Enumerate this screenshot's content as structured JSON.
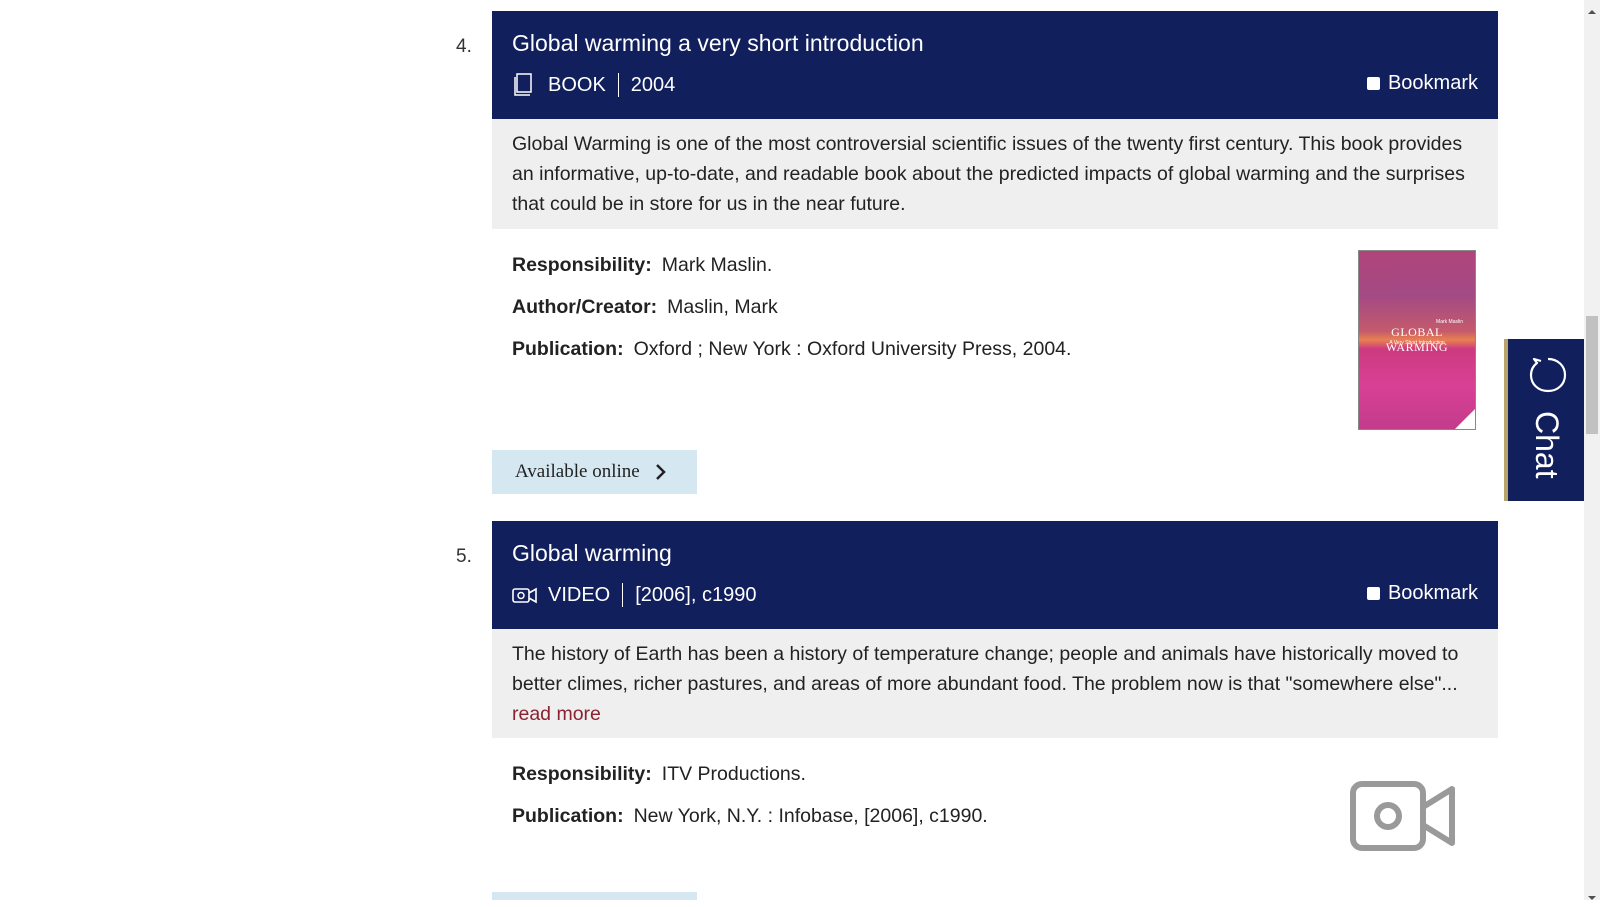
{
  "results": [
    {
      "number": "4.",
      "title": "Global warming a very short introduction",
      "type": "BOOK",
      "type_icon": "book-icon",
      "date": "2004",
      "bookmark_label": "Bookmark",
      "description": "Global Warming is one of the most controversial scientific issues of the twenty first century. This book provides an informative, up-to-date, and readable book about the predicted impacts of global warming and the surprises that could be in store for us in the near future.",
      "fields": [
        {
          "label": "Responsibility:",
          "value": "Mark Maslin."
        },
        {
          "label": "Author/Creator:",
          "value": "Maslin, Mark"
        },
        {
          "label": "Publication:",
          "value": "Oxford ; New York : Oxford University Press, 2004."
        }
      ],
      "cover": {
        "title": "GLOBAL WARMING",
        "subtitle": "A Very Short Introduction",
        "author": "Mark Maslin"
      },
      "action_label": "Available online"
    },
    {
      "number": "5.",
      "title": "Global warming",
      "type": "VIDEO",
      "type_icon": "video-icon",
      "date": "[2006], c1990",
      "bookmark_label": "Bookmark",
      "description": "The history of Earth has been a history of temperature change; people and animals have historically moved to better climes, richer pastures, and areas of more abundant food. The problem now is that \"somewhere else\"...",
      "read_more": "read more",
      "fields": [
        {
          "label": "Responsibility:",
          "value": "ITV Productions."
        },
        {
          "label": "Publication:",
          "value": "New York, N.Y. : Infobase, [2006], c1990."
        }
      ]
    }
  ],
  "chat": {
    "label": "Chat"
  },
  "colors": {
    "header_bg": "#111f5c",
    "description_bg": "#efefef",
    "button_bg": "#d5e8f2",
    "link": "#8b2131"
  }
}
